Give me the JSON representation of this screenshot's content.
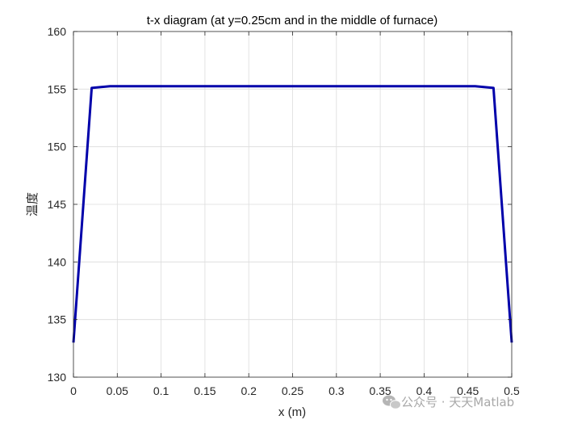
{
  "chart_data": {
    "type": "line",
    "title": "t-x diagram (at y=0.25cm and in the middle of furnace)",
    "xlabel": "x (m)",
    "ylabel": "温度",
    "xlim": [
      0,
      0.5
    ],
    "ylim": [
      130,
      160
    ],
    "x_ticks": [
      0,
      0.05,
      0.1,
      0.15,
      0.2,
      0.25,
      0.3,
      0.35,
      0.4,
      0.45,
      0.5
    ],
    "x_tick_labels": [
      "0",
      "0.05",
      "0.1",
      "0.15",
      "0.2",
      "0.25",
      "0.3",
      "0.35",
      "0.4",
      "0.45",
      "0.5"
    ],
    "y_ticks": [
      130,
      135,
      140,
      145,
      150,
      155,
      160
    ],
    "y_tick_labels": [
      "130",
      "135",
      "140",
      "145",
      "150",
      "155",
      "160"
    ],
    "grid": true,
    "series": [
      {
        "color": "#0000aa",
        "x": [
          0,
          0.0208,
          0.0417,
          0.0625,
          0.25,
          0.4375,
          0.4583,
          0.4792,
          0.5
        ],
        "y": [
          133.0,
          155.1,
          155.25,
          155.25,
          155.25,
          155.25,
          155.25,
          155.1,
          133.0
        ]
      }
    ]
  },
  "watermark": {
    "text": "公众号 · 天天Matlab",
    "icon": "wechat-icon"
  }
}
